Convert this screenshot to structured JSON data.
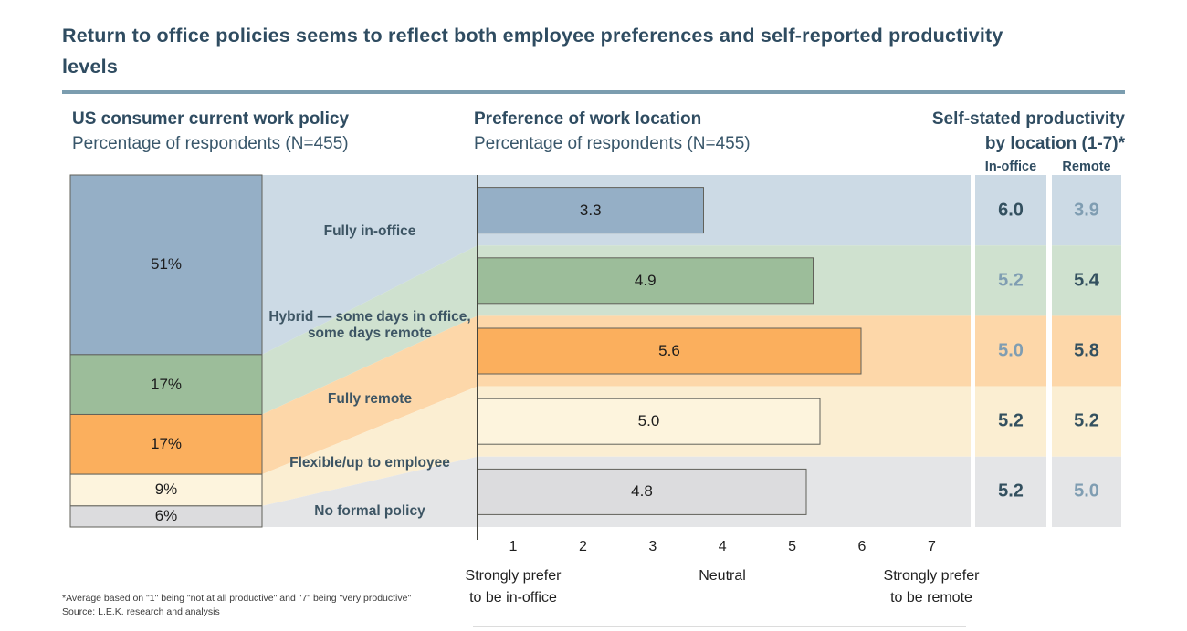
{
  "title": "Return to office policies seems to reflect both employee preferences and self-reported productivity levels",
  "sections": {
    "policy": {
      "title": "US consumer current work policy",
      "subtitle": "Percentage of respondents (N=455)"
    },
    "preference": {
      "title": "Preference of work location",
      "subtitle": "Percentage of respondents (N=455)"
    },
    "productivity": {
      "line1": "Self-stated productivity",
      "line2": "by location (1-7)*",
      "col_office": "In-office",
      "col_remote": "Remote"
    }
  },
  "chart_data": {
    "type": "composite (stacked bar + flow bands + horizontal bars + value table)",
    "categories": [
      "Fully in-office",
      "Hybrid — some days in office, some days remote",
      "Fully remote",
      "Flexible/up to employee",
      "No formal policy"
    ],
    "series": [
      {
        "name": "US consumer current work policy (% of respondents, N=455)",
        "unit": "%",
        "values": [
          51,
          17,
          17,
          9,
          6
        ]
      },
      {
        "name": "Preference of work location (average, 1-7 scale)",
        "unit": "pt",
        "values": [
          3.3,
          4.9,
          5.6,
          5.0,
          4.8
        ]
      },
      {
        "name": "Self-stated productivity in-office (1-7)",
        "unit": "pt",
        "values": [
          6.0,
          5.2,
          5.0,
          5.2,
          5.2
        ]
      },
      {
        "name": "Self-stated productivity remote (1-7)",
        "unit": "pt",
        "values": [
          3.9,
          5.4,
          5.8,
          5.2,
          5.0
        ]
      }
    ],
    "display": {
      "pct_labels": [
        "51%",
        "17%",
        "17%",
        "9%",
        "6%"
      ],
      "pref_labels": [
        "3.3",
        "4.9",
        "5.6",
        "5.0",
        "4.8"
      ],
      "office_labels": [
        "6.0",
        "5.2",
        "5.0",
        "5.2",
        "5.2"
      ],
      "remote_labels": [
        "3.9",
        "5.4",
        "5.8",
        "5.2",
        "5.0"
      ]
    },
    "emphasis": {
      "office": [
        true,
        false,
        false,
        true,
        true
      ],
      "remote": [
        false,
        true,
        true,
        true,
        false
      ]
    },
    "pref_axis": {
      "min": 1,
      "max": 7,
      "ticks": [
        "1",
        "2",
        "3",
        "4",
        "5",
        "6",
        "7"
      ]
    },
    "colors": {
      "segments": [
        "#95afc6",
        "#9cbd9a",
        "#fbaf5d",
        "#fdf4dd",
        "#dcdcde"
      ],
      "tints": [
        "#ccdae5",
        "#cfe1cf",
        "#fdd7a9",
        "#fbeed2",
        "#e4e5e7"
      ],
      "border": "#61615a",
      "axis_line": "#45453f",
      "accent_dark": "#33505f",
      "accent_light": "#7f9db2"
    },
    "legend_position": "none",
    "grid": false
  },
  "axis": {
    "caption_low": "Strongly prefer\nto be in-office",
    "caption_mid": "Neutral",
    "caption_high": "Strongly prefer\nto be remote"
  },
  "footnotes": {
    "note": "*Average based on \"1\" being \"not at all productive\" and \"7\" being \"very productive\"",
    "source": "Source: L.E.K. research and analysis"
  }
}
